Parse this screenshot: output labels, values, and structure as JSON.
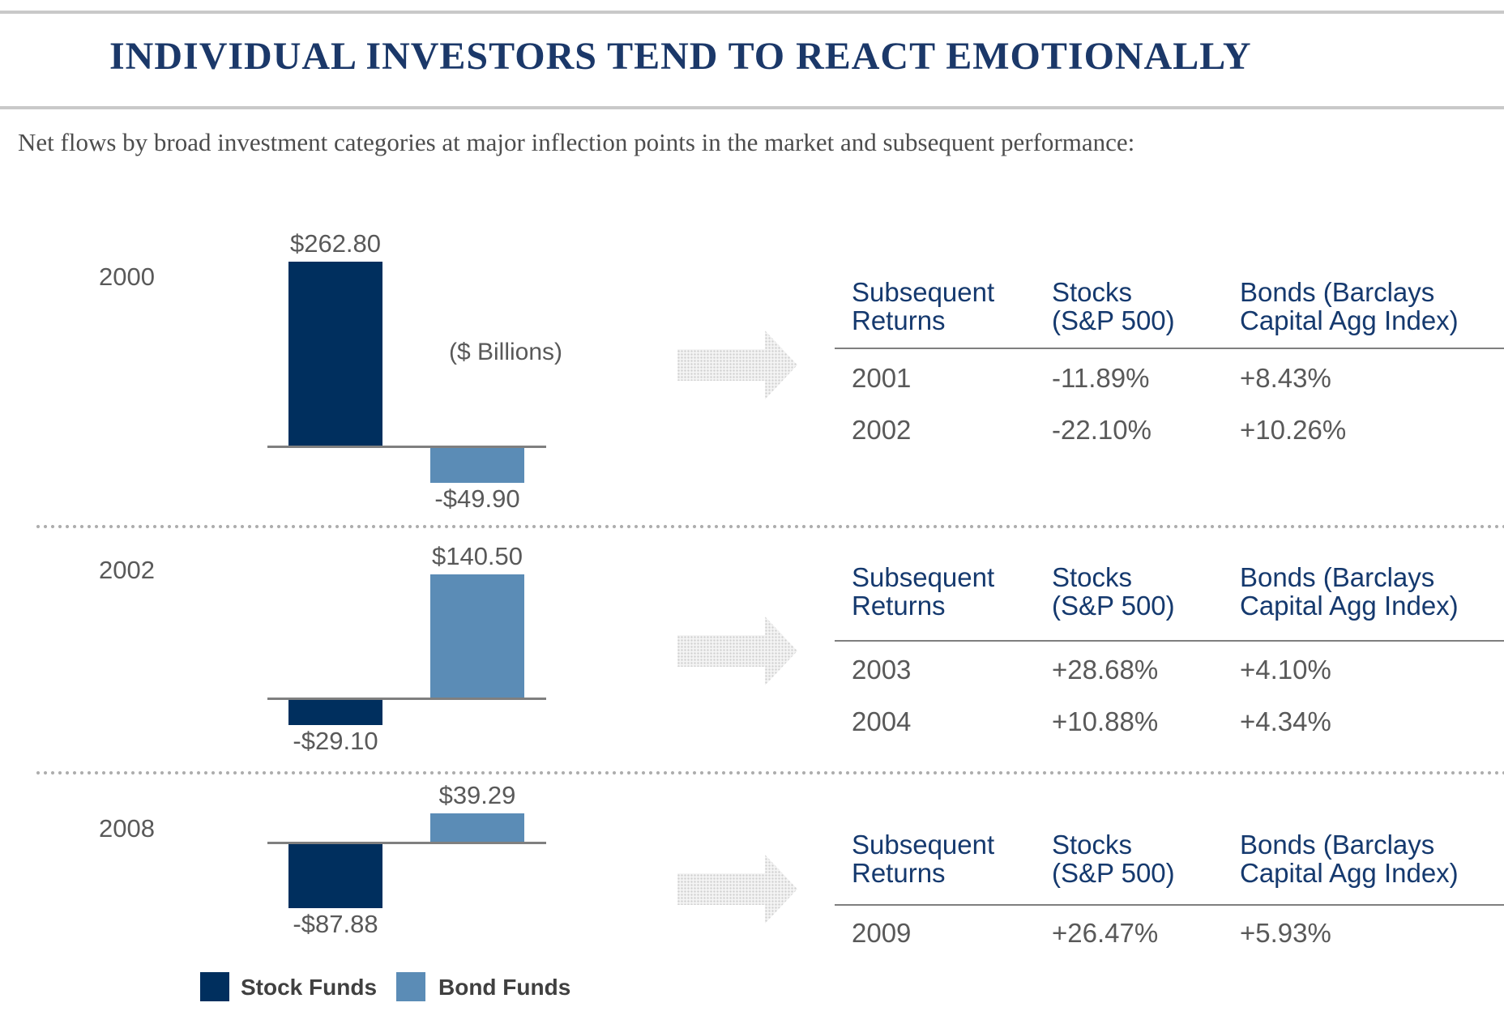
{
  "page": {
    "title": "INDIVIDUAL INVESTORS TEND TO REACT EMOTIONALLY",
    "subtitle": "Net flows by broad investment categories at major inflection points in the market and subsequent performance:"
  },
  "colors": {
    "stock_funds": "#002F5E",
    "bond_funds": "#5B8CB6",
    "title_navy": "#1B3869",
    "table_header_navy": "#15396E",
    "body_gray": "#595959",
    "axis_gray": "#7F7F7F"
  },
  "legend": {
    "stock_label": "Stock Funds",
    "bond_label": "Bond Funds"
  },
  "chart_data": [
    {
      "type": "bar",
      "year": "2000",
      "units_note": "($ Billions)",
      "categories": [
        "Stock Funds",
        "Bond Funds"
      ],
      "values": [
        262.8,
        -49.9
      ],
      "value_labels": [
        "$262.80",
        "-$49.90"
      ],
      "ylabel": "Net flows ($ Billions)",
      "grid": false
    },
    {
      "type": "bar",
      "year": "2002",
      "categories": [
        "Stock Funds",
        "Bond Funds"
      ],
      "values": [
        -29.1,
        140.5
      ],
      "value_labels": [
        "-$29.10",
        "$140.50"
      ],
      "ylabel": "Net flows ($ Billions)",
      "grid": false
    },
    {
      "type": "bar",
      "year": "2008",
      "categories": [
        "Stock Funds",
        "Bond Funds"
      ],
      "values": [
        -87.88,
        39.29
      ],
      "value_labels": [
        "-$87.88",
        "$39.29"
      ],
      "ylabel": "Net flows ($ Billions)",
      "grid": false
    }
  ],
  "tables": [
    {
      "headers": [
        "Subsequent\nReturns",
        "Stocks\n(S&P 500)",
        "Bonds (Barclays\nCapital Agg Index)"
      ],
      "rows": [
        [
          "2001",
          "-11.89%",
          "+8.43%"
        ],
        [
          "2002",
          "-22.10%",
          "+10.26%"
        ]
      ]
    },
    {
      "headers": [
        "Subsequent\nReturns",
        "Stocks\n(S&P 500)",
        "Bonds (Barclays\nCapital Agg Index)"
      ],
      "rows": [
        [
          "2003",
          "+28.68%",
          "+4.10%"
        ],
        [
          "2004",
          "+10.88%",
          "+4.34%"
        ]
      ]
    },
    {
      "headers": [
        "Subsequent\nReturns",
        "Stocks\n(S&P 500)",
        "Bonds (Barclays\nCapital Agg Index)"
      ],
      "rows": [
        [
          "2009",
          "+26.47%",
          "+5.93%"
        ]
      ]
    }
  ]
}
